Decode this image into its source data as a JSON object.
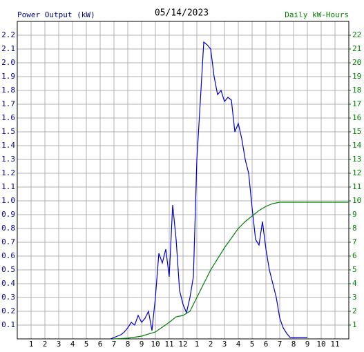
{
  "chart_data": {
    "type": "line",
    "title": "05/14/2023",
    "y_label": "Power Output (kW)",
    "y2_label": "Daily kW-Hours",
    "grid": true,
    "xlim": [
      0,
      24
    ],
    "xticks": [
      1,
      2,
      3,
      4,
      5,
      6,
      7,
      8,
      9,
      10,
      11,
      12,
      {
        "value": 13,
        "label": "1"
      },
      {
        "value": 14,
        "label": "2"
      },
      {
        "value": 15,
        "label": "3"
      },
      {
        "value": 16,
        "label": "4"
      },
      {
        "value": 17,
        "label": "5"
      },
      {
        "value": 18,
        "label": "6"
      },
      {
        "value": 19,
        "label": "7"
      },
      {
        "value": 20,
        "label": "8"
      },
      {
        "value": 21,
        "label": "9"
      },
      {
        "value": 22,
        "label": "10"
      },
      {
        "value": 23,
        "label": "11"
      }
    ],
    "ylim": [
      0,
      2.3
    ],
    "yticks": [
      0.1,
      0.2,
      0.3,
      0.4,
      0.5,
      0.6,
      0.7,
      0.8,
      0.9,
      {
        "value": 1,
        "label": "1.0"
      },
      1.1,
      1.2,
      1.3,
      1.4,
      1.5,
      1.6,
      1.7,
      1.8,
      1.9,
      {
        "value": 2,
        "label": "2.0"
      },
      2.1,
      2.2
    ],
    "y2lim": [
      0,
      23
    ],
    "y2ticks": [
      1,
      2,
      3,
      4,
      5,
      6,
      7,
      8,
      9,
      10,
      11,
      12,
      13,
      14,
      15,
      16,
      17,
      18,
      19,
      20,
      21,
      22
    ],
    "series": [
      {
        "name": "Power Output (kW)",
        "color": "#0000cc",
        "axis": "y",
        "x": [
          6.75,
          7,
          7.25,
          7.5,
          7.75,
          8,
          8.25,
          8.5,
          8.75,
          9,
          9.25,
          9.5,
          9.75,
          10,
          10.25,
          10.5,
          10.75,
          11,
          11.25,
          11.5,
          11.75,
          12,
          12.25,
          12.5,
          12.75,
          13,
          13.25,
          13.5,
          13.75,
          14,
          14.25,
          14.5,
          14.75,
          15,
          15.25,
          15.5,
          15.75,
          16,
          16.25,
          16.5,
          16.75,
          17,
          17.25,
          17.5,
          17.75,
          18,
          18.25,
          18.5,
          18.75,
          19,
          19.25,
          19.5,
          19.75,
          20,
          21
        ],
        "values": [
          0,
          0.01,
          0.02,
          0.03,
          0.05,
          0.08,
          0.12,
          0.1,
          0.17,
          0.12,
          0.15,
          0.2,
          0.06,
          0.3,
          0.62,
          0.55,
          0.65,
          0.45,
          0.97,
          0.72,
          0.35,
          0.25,
          0.19,
          0.3,
          0.45,
          1.3,
          1.72,
          2.15,
          2.13,
          2.1,
          1.9,
          1.77,
          1.8,
          1.72,
          1.75,
          1.73,
          1.5,
          1.56,
          1.45,
          1.3,
          1.2,
          0.95,
          0.72,
          0.68,
          0.85,
          0.65,
          0.5,
          0.4,
          0.3,
          0.15,
          0.08,
          0.04,
          0.01,
          0.01,
          0.01
        ]
      },
      {
        "name": "Daily kW-Hours",
        "color": "#008000",
        "axis": "y2",
        "x": [
          7,
          8,
          9,
          10,
          11,
          11.5,
          12,
          12.5,
          13,
          13.5,
          14,
          14.5,
          15,
          15.5,
          16,
          16.5,
          17,
          17.5,
          18,
          18.5,
          19,
          20,
          24
        ],
        "values": [
          0,
          0.05,
          0.2,
          0.5,
          1.2,
          1.6,
          1.7,
          2.0,
          3.0,
          4.0,
          5.0,
          5.8,
          6.6,
          7.3,
          8.0,
          8.5,
          8.9,
          9.3,
          9.6,
          9.8,
          9.9,
          9.9,
          9.9
        ]
      }
    ]
  }
}
